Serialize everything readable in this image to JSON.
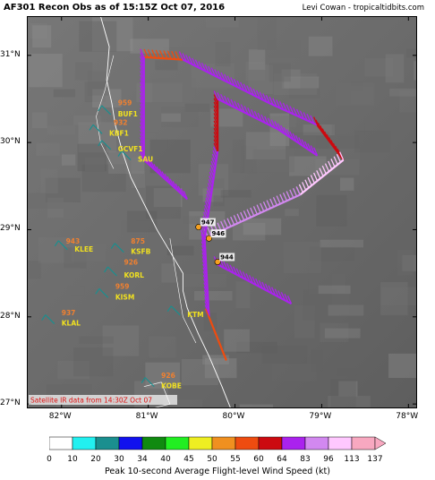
{
  "header": {
    "title": "AF301 Recon Obs as of 15:15Z Oct 07, 2016",
    "credit": "Levi Cowan - tropicaltidbits.com"
  },
  "map": {
    "lon_range": [
      -82.4,
      -77.9
    ],
    "lat_range": [
      26.95,
      31.45
    ],
    "lat_labels": [
      "31°N",
      "30°N",
      "29°N",
      "28°N",
      "27°N"
    ],
    "lat_values": [
      31,
      30,
      29,
      28,
      27
    ],
    "lon_labels": [
      "82°W",
      "81°W",
      "80°W",
      "79°W",
      "78°W"
    ],
    "lon_values": [
      -82,
      -81,
      -80,
      -79,
      -78
    ],
    "satellite_note": "Satellite IR data from 14:30Z Oct 07",
    "stations": [
      {
        "id": "BUF1",
        "lon": -81.35,
        "lat": 30.3
      },
      {
        "id": "KBF1",
        "lon": -81.45,
        "lat": 30.08
      },
      {
        "id": "GCVF1",
        "lon": -81.35,
        "lat": 29.9
      },
      {
        "id": "SAU",
        "lon": -81.12,
        "lat": 29.78
      },
      {
        "id": "KLEE",
        "lon": -81.85,
        "lat": 28.75
      },
      {
        "id": "KSFB",
        "lon": -81.2,
        "lat": 28.72
      },
      {
        "id": "KORL",
        "lon": -81.28,
        "lat": 28.45
      },
      {
        "id": "KISM",
        "lon": -81.38,
        "lat": 28.2
      },
      {
        "id": "KLAL",
        "lon": -82.0,
        "lat": 27.9
      },
      {
        "id": "KOBE",
        "lon": -80.85,
        "lat": 27.18
      },
      {
        "id": "KTM",
        "lon": -80.55,
        "lat": 28.0
      }
    ],
    "pressures": [
      {
        "value": "943",
        "lon": -81.95,
        "lat": 28.84
      },
      {
        "value": "875",
        "lon": -81.2,
        "lat": 28.84
      },
      {
        "value": "926",
        "lon": -81.28,
        "lat": 28.6
      },
      {
        "value": "959",
        "lon": -81.38,
        "lat": 28.32
      },
      {
        "value": "937",
        "lon": -82.0,
        "lat": 28.02
      },
      {
        "value": "926",
        "lon": -80.85,
        "lat": 27.3
      },
      {
        "value": "959",
        "lon": -81.35,
        "lat": 30.43
      },
      {
        "value": "932",
        "lon": -81.4,
        "lat": 30.2
      }
    ],
    "center_fixes": [
      {
        "pressure": "947",
        "lon": -80.42,
        "lat": 29.03
      },
      {
        "pressure": "946",
        "lon": -80.3,
        "lat": 28.9
      },
      {
        "pressure": "944",
        "lon": -80.2,
        "lat": 28.63
      }
    ]
  },
  "colorbar": {
    "ticks": [
      "0",
      "10",
      "20",
      "30",
      "34",
      "40",
      "45",
      "50",
      "55",
      "60",
      "64",
      "83",
      "96",
      "113",
      "137"
    ],
    "colors": [
      "#ffffff",
      "#22f0f0",
      "#1a8f8f",
      "#1111ee",
      "#108a10",
      "#22ee22",
      "#eeee22",
      "#f09020",
      "#ee4c10",
      "#cc0a10",
      "#aa22ee",
      "#d288f0",
      "#ffc8ff",
      "#f8a8c0"
    ],
    "label": "Peak 10-second Average Flight-level Wind Speed (kt)"
  },
  "flight_track_legs": [
    {
      "from": [
        -81.05,
        30.98
      ],
      "to": [
        -80.6,
        30.95
      ],
      "color": "#ee4c10"
    },
    {
      "from": [
        -80.6,
        30.95
      ],
      "to": [
        -79.6,
        30.45
      ],
      "color": "#aa22ee"
    },
    {
      "from": [
        -79.6,
        30.45
      ],
      "to": [
        -79.05,
        30.2
      ],
      "color": "#aa22ee"
    },
    {
      "from": [
        -79.05,
        30.2
      ],
      "to": [
        -78.75,
        29.8
      ],
      "color": "#cc0a10"
    },
    {
      "from": [
        -78.75,
        29.8
      ],
      "to": [
        -79.25,
        29.4
      ],
      "color": "#ffc8ff"
    },
    {
      "from": [
        -79.25,
        29.4
      ],
      "to": [
        -80.35,
        28.9
      ],
      "color": "#d288f0"
    },
    {
      "from": [
        -80.35,
        28.9
      ],
      "to": [
        -80.3,
        28.0
      ],
      "color": "#aa22ee"
    },
    {
      "from": [
        -80.3,
        28.0
      ],
      "to": [
        -80.1,
        27.5
      ],
      "color": "#ee4c10"
    },
    {
      "from": [
        -80.35,
        28.9
      ],
      "to": [
        -80.2,
        29.9
      ],
      "color": "#aa22ee"
    },
    {
      "from": [
        -80.2,
        29.9
      ],
      "to": [
        -80.2,
        30.5
      ],
      "color": "#cc0a10"
    },
    {
      "from": [
        -80.2,
        30.5
      ],
      "to": [
        -79.5,
        30.15
      ],
      "color": "#aa22ee"
    },
    {
      "from": [
        -79.5,
        30.15
      ],
      "to": [
        -79.05,
        29.85
      ],
      "color": "#aa22ee"
    },
    {
      "from": [
        -80.2,
        28.6
      ],
      "to": [
        -79.35,
        28.15
      ],
      "color": "#aa22ee"
    },
    {
      "from": [
        -81.05,
        30.98
      ],
      "to": [
        -81.05,
        29.8
      ],
      "color": "#aa22ee"
    },
    {
      "from": [
        -81.05,
        29.8
      ],
      "to": [
        -80.55,
        29.35
      ],
      "color": "#aa22ee"
    }
  ]
}
